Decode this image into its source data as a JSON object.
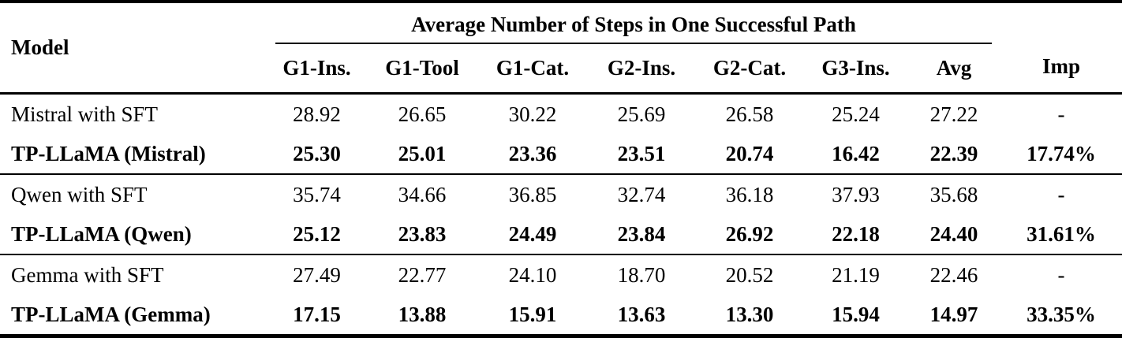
{
  "table": {
    "model_header": "Model",
    "title_header": "Average Number of Steps in One Successful Path",
    "imp_header": "Imp",
    "columns": [
      "G1-Ins.",
      "G1-Tool",
      "G1-Cat.",
      "G2-Ins.",
      "G2-Cat.",
      "G3-Ins.",
      "Avg"
    ],
    "groups": [
      {
        "rows": [
          {
            "model": "Mistral with SFT",
            "values": [
              "28.92",
              "26.65",
              "30.22",
              "25.69",
              "26.58",
              "25.24",
              "27.22"
            ],
            "imp": "-"
          },
          {
            "model": "TP-LLaMA (Mistral)",
            "values": [
              "25.30",
              "25.01",
              "23.36",
              "23.51",
              "20.74",
              "16.42",
              "22.39"
            ],
            "imp": "17.74%"
          }
        ]
      },
      {
        "rows": [
          {
            "model": "Qwen with SFT",
            "values": [
              "35.74",
              "34.66",
              "36.85",
              "32.74",
              "36.18",
              "37.93",
              "35.68"
            ],
            "imp": "-"
          },
          {
            "model": "TP-LLaMA (Qwen)",
            "values": [
              "25.12",
              "23.83",
              "24.49",
              "23.84",
              "26.92",
              "22.18",
              "24.40"
            ],
            "imp": "31.61%"
          }
        ]
      },
      {
        "rows": [
          {
            "model": "Gemma with SFT",
            "values": [
              "27.49",
              "22.77",
              "24.10",
              "18.70",
              "20.52",
              "21.19",
              "22.46"
            ],
            "imp": "-"
          },
          {
            "model": "TP-LLaMA (Gemma)",
            "values": [
              "17.15",
              "13.88",
              "15.91",
              "13.63",
              "13.30",
              "15.94",
              "14.97"
            ],
            "imp": "33.35%"
          }
        ]
      }
    ]
  }
}
